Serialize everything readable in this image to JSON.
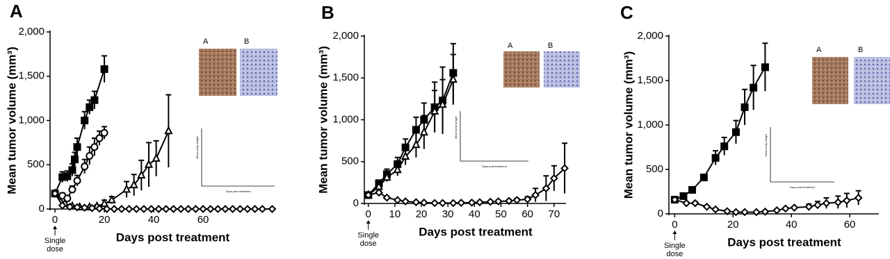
{
  "chart_data": [
    {
      "type": "line",
      "label": "A",
      "y_label": "Mean tumor volume (mm³)",
      "x_label": "Days post treatment",
      "annotation": [
        "Single",
        "dose"
      ],
      "xlim": [
        -2,
        89
      ],
      "xticks": [
        0,
        20,
        40,
        60
      ],
      "ylim": [
        0,
        2000
      ],
      "yticks": [
        0,
        500,
        {
          "value": 1000,
          "label": "1,000"
        },
        {
          "value": 1500,
          "label": "1,500"
        },
        {
          "value": 2000,
          "label": "2,000"
        }
      ],
      "inset": {
        "image_labels": [
          "A",
          "B"
        ],
        "x_label": "Days post treatment",
        "y_label": "Mean body weight"
      },
      "series": [
        {
          "marker": "square",
          "color": "#000000",
          "x": [
            0,
            3,
            5,
            7,
            8,
            9,
            12,
            14,
            16,
            20
          ],
          "values": [
            175,
            360,
            370,
            440,
            560,
            700,
            1000,
            1150,
            1230,
            1580
          ],
          "errors": [
            30,
            60,
            60,
            70,
            80,
            100,
            100,
            80,
            100,
            150
          ]
        },
        {
          "marker": "circle",
          "color": "#000000",
          "x": [
            0,
            3,
            5,
            7,
            9,
            12,
            14,
            16,
            18,
            20
          ],
          "values": [
            175,
            150,
            120,
            220,
            320,
            480,
            600,
            700,
            800,
            860
          ],
          "errors": [
            30,
            30,
            30,
            40,
            60,
            80,
            100,
            100,
            80,
            70
          ]
        },
        {
          "marker": "triangle",
          "color": "#000000",
          "x": [
            0,
            4,
            7,
            10,
            14,
            17,
            20,
            23,
            29,
            32,
            35,
            38,
            41,
            46
          ],
          "values": [
            175,
            60,
            30,
            20,
            20,
            30,
            60,
            100,
            220,
            270,
            380,
            500,
            570,
            880
          ],
          "errors": [
            30,
            20,
            10,
            10,
            10,
            15,
            40,
            40,
            90,
            120,
            170,
            250,
            200,
            410
          ]
        },
        {
          "marker": "diamond",
          "color": "#000000",
          "x": [
            0,
            3,
            6,
            9,
            12,
            15,
            18,
            21,
            24,
            27,
            30,
            33,
            36,
            39,
            42,
            45,
            48,
            51,
            54,
            57,
            60,
            63,
            66,
            69,
            72,
            75,
            78,
            81,
            84,
            88
          ],
          "values": [
            175,
            40,
            25,
            20,
            15,
            10,
            5,
            0,
            0,
            0,
            0,
            0,
            0,
            0,
            0,
            0,
            0,
            0,
            0,
            0,
            0,
            0,
            0,
            0,
            0,
            0,
            0,
            0,
            0,
            0
          ]
        }
      ]
    },
    {
      "type": "line",
      "label": "B",
      "y_label": "Mean tumor volume (mm³)",
      "x_label": "Days post treatment",
      "annotation": [
        "Single",
        "dose"
      ],
      "xlim": [
        -1.5,
        74.5
      ],
      "xticks": [
        0,
        10,
        20,
        30,
        40,
        50,
        60,
        70
      ],
      "ylim": [
        0,
        2000
      ],
      "yticks": [
        0,
        500,
        {
          "value": 1000,
          "label": "1,000"
        },
        {
          "value": 1500,
          "label": "1,500"
        },
        {
          "value": 2000,
          "label": "2,000"
        }
      ],
      "inset": {
        "image_labels": [
          "A",
          "B"
        ],
        "x_label": "Days post treatment",
        "y_label": "Mean body weight"
      },
      "series": [
        {
          "marker": "square",
          "color": "#000000",
          "x": [
            0,
            4,
            7,
            11,
            14,
            18,
            21,
            25,
            28,
            32
          ],
          "values": [
            100,
            240,
            350,
            470,
            670,
            880,
            1000,
            1150,
            1230,
            1560
          ],
          "errors": [
            30,
            40,
            60,
            80,
            100,
            150,
            200,
            300,
            400,
            350
          ]
        },
        {
          "marker": "triangle",
          "color": "#000000",
          "x": [
            0,
            4,
            7,
            11,
            14,
            18,
            21,
            25,
            28,
            32
          ],
          "values": [
            100,
            200,
            310,
            400,
            560,
            700,
            850,
            1100,
            1180,
            1480
          ],
          "errors": [
            30,
            40,
            50,
            70,
            100,
            150,
            200,
            250,
            300,
            300
          ]
        },
        {
          "marker": "diamond",
          "color": "#000000",
          "x": [
            0,
            4,
            7,
            11,
            14,
            18,
            21,
            25,
            28,
            32,
            35,
            39,
            42,
            46,
            49,
            53,
            56,
            60,
            63,
            67,
            70,
            74
          ],
          "values": [
            100,
            130,
            70,
            40,
            25,
            15,
            10,
            5,
            5,
            5,
            8,
            10,
            15,
            20,
            25,
            30,
            40,
            50,
            100,
            180,
            300,
            420
          ],
          "errors": [
            10,
            20,
            10,
            10,
            10,
            5,
            5,
            5,
            5,
            5,
            5,
            5,
            5,
            10,
            10,
            15,
            20,
            30,
            80,
            150,
            150,
            300
          ]
        }
      ]
    },
    {
      "type": "line",
      "label": "C",
      "y_label": "Mean tumor volume (mm³)",
      "x_label": "Days post treatment",
      "annotation": [
        "Single",
        "dose"
      ],
      "xlim": [
        -2,
        70
      ],
      "xticks": [
        0,
        20,
        40,
        60
      ],
      "ylim": [
        0,
        2000
      ],
      "yticks": [
        0,
        500,
        {
          "value": 1000,
          "label": "1,000"
        },
        {
          "value": 1500,
          "label": "1,500"
        },
        {
          "value": 2000,
          "label": "2,000"
        }
      ],
      "inset": {
        "image_labels": [
          "A",
          "B"
        ],
        "x_label": "Days post treatment",
        "y_label": "Mean body weight"
      },
      "series": [
        {
          "marker": "square",
          "color": "#000000",
          "x": [
            0,
            3,
            6,
            10,
            14,
            17,
            21,
            24,
            27,
            31
          ],
          "values": [
            160,
            200,
            270,
            410,
            630,
            760,
            920,
            1200,
            1420,
            1650
          ],
          "errors": [
            15,
            20,
            20,
            20,
            80,
            100,
            130,
            200,
            250,
            270
          ]
        },
        {
          "marker": "diamond",
          "color": "#000000",
          "x": [
            0,
            4,
            7,
            11,
            14,
            18,
            21,
            24,
            28,
            31,
            35,
            38,
            41,
            46,
            49,
            52,
            56,
            59,
            63
          ],
          "values": [
            160,
            120,
            120,
            80,
            50,
            30,
            20,
            20,
            20,
            25,
            40,
            60,
            70,
            80,
            100,
            120,
            130,
            150,
            180
          ],
          "errors": [
            15,
            15,
            15,
            10,
            10,
            10,
            10,
            10,
            10,
            10,
            10,
            10,
            10,
            30,
            40,
            60,
            70,
            80,
            80
          ]
        }
      ]
    }
  ]
}
